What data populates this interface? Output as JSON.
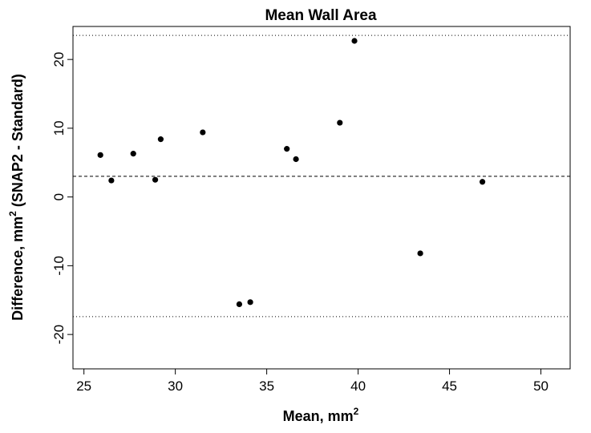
{
  "chart_data": {
    "type": "scatter",
    "title": "Mean Wall Area",
    "xlabel": "Mean, mm",
    "xlabel_sup": "2",
    "ylabel_pre": "Difference, mm",
    "ylabel_sup": "2",
    "ylabel_post": " (SNAP2 - Standard)",
    "xlim": [
      24.4,
      51.6
    ],
    "ylim": [
      -25,
      24.8
    ],
    "xticks": [
      25,
      30,
      35,
      40,
      45,
      50
    ],
    "yticks": [
      -20,
      -10,
      0,
      10,
      20
    ],
    "points": [
      {
        "x": 25.9,
        "y": 6.1
      },
      {
        "x": 26.5,
        "y": 2.4
      },
      {
        "x": 27.7,
        "y": 6.3
      },
      {
        "x": 28.9,
        "y": 2.5
      },
      {
        "x": 29.2,
        "y": 8.4
      },
      {
        "x": 31.5,
        "y": 9.4
      },
      {
        "x": 33.5,
        "y": -15.6
      },
      {
        "x": 34.1,
        "y": -15.3
      },
      {
        "x": 36.1,
        "y": 7.0
      },
      {
        "x": 36.6,
        "y": 5.5
      },
      {
        "x": 39.0,
        "y": 10.8
      },
      {
        "x": 39.8,
        "y": 22.7
      },
      {
        "x": 43.4,
        "y": -8.2
      },
      {
        "x": 46.8,
        "y": 2.2
      }
    ],
    "reference_lines": [
      {
        "name": "mean-difference",
        "y": 3.0,
        "style": "dashed"
      },
      {
        "name": "upper-limit",
        "y": 23.5,
        "style": "dotted"
      },
      {
        "name": "lower-limit",
        "y": -17.4,
        "style": "dotted"
      }
    ],
    "grid": false,
    "legend": "none"
  }
}
